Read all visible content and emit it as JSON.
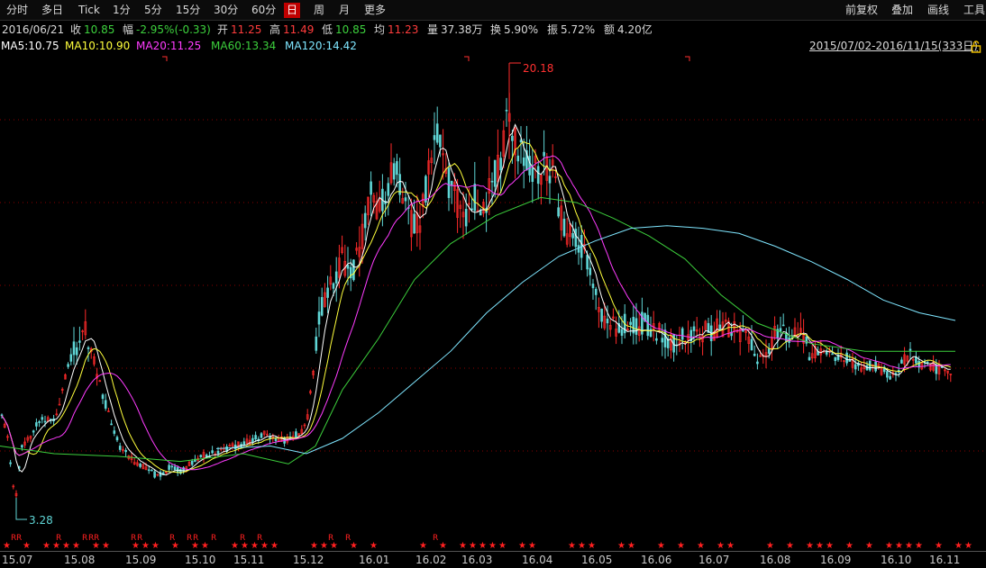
{
  "toolbar": {
    "left": [
      "分时",
      "多日",
      "Tick",
      "1分",
      "5分",
      "15分",
      "30分",
      "60分",
      "日",
      "周",
      "月",
      "更多"
    ],
    "active": "日",
    "right": [
      "前复权",
      "叠加",
      "画线",
      "工具"
    ]
  },
  "info": {
    "date": "2016/06/21",
    "close_label": "收",
    "close": "10.85",
    "change_label": "幅",
    "change": "-2.95%(-0.33)",
    "open_label": "开",
    "open": "11.25",
    "high_label": "高",
    "high": "11.49",
    "low_label": "低",
    "low": "10.85",
    "avg_label": "均",
    "avg": "11.23",
    "volume_label": "量",
    "volume": "37.38万",
    "turnover_label": "换",
    "turnover": "5.90%",
    "amplitude_label": "振",
    "amplitude": "5.72%",
    "amount_label": "额",
    "amount": "4.20亿"
  },
  "ma": {
    "ma5": "MA5:10.75",
    "ma10": "MA10:10.90",
    "ma20": "MA20:11.25",
    "ma60": "MA60:13.34",
    "ma120": "MA120:14.42",
    "range": "2015/07/02-2016/11/15(333日)",
    "lock_icon": "lock-icon"
  },
  "colors": {
    "up": "#ff2a2a",
    "down": "#5fd6d6",
    "ma5": "#ffffff",
    "ma10": "#ffff3c",
    "ma20": "#ff3cff",
    "ma60": "#3ccf3c",
    "ma120": "#7fe6ff",
    "grid": "#8a0000",
    "change": "#3dd13d",
    "up_text": "#ff3c3c",
    "marker": "#ff2020"
  },
  "price_labels": {
    "high": "20.18",
    "low": "3.28"
  },
  "date_axis": [
    "15.07",
    "15.08",
    "15.09",
    "15.10",
    "15.11",
    "15.12",
    "16.01",
    "16.02",
    "16.03",
    "16.04",
    "16.05",
    "16.06",
    "16.07",
    "16.08",
    "16.09",
    "16.10",
    "16.11"
  ],
  "chart_data": {
    "type": "candlestick",
    "price_range": [
      3.28,
      20.18
    ],
    "series": [
      {
        "name": "MA5",
        "last": 10.75
      },
      {
        "name": "MA10",
        "last": 10.9
      },
      {
        "name": "MA20",
        "last": 11.25
      },
      {
        "name": "MA60",
        "last": 13.34
      },
      {
        "name": "MA120",
        "last": 14.42
      }
    ],
    "keypoints": [
      [
        0,
        6.6
      ],
      [
        8,
        5.9
      ],
      [
        14,
        3.9
      ],
      [
        18,
        3.4
      ],
      [
        24,
        5.3
      ],
      [
        35,
        5.8
      ],
      [
        45,
        6.4
      ],
      [
        60,
        6.3
      ],
      [
        72,
        7.9
      ],
      [
        82,
        9.0
      ],
      [
        95,
        9.8
      ],
      [
        105,
        8.5
      ],
      [
        112,
        7.5
      ],
      [
        120,
        6.6
      ],
      [
        132,
        5.3
      ],
      [
        145,
        4.8
      ],
      [
        160,
        4.5
      ],
      [
        175,
        4.1
      ],
      [
        190,
        4.5
      ],
      [
        200,
        4.3
      ],
      [
        215,
        4.7
      ],
      [
        230,
        5.0
      ],
      [
        245,
        5.1
      ],
      [
        260,
        5.3
      ],
      [
        280,
        5.5
      ],
      [
        295,
        5.8
      ],
      [
        310,
        5.5
      ],
      [
        325,
        5.6
      ],
      [
        340,
        6.1
      ],
      [
        348,
        8.4
      ],
      [
        356,
        10.7
      ],
      [
        365,
        11.5
      ],
      [
        380,
        12.6
      ],
      [
        392,
        12.2
      ],
      [
        403,
        13.6
      ],
      [
        412,
        15.5
      ],
      [
        420,
        14.5
      ],
      [
        428,
        15.1
      ],
      [
        435,
        15.9
      ],
      [
        442,
        16.0
      ],
      [
        450,
        14.8
      ],
      [
        458,
        13.8
      ],
      [
        466,
        14.0
      ],
      [
        474,
        15.8
      ],
      [
        482,
        16.8
      ],
      [
        490,
        17.6
      ],
      [
        498,
        15.5
      ],
      [
        507,
        14.8
      ],
      [
        515,
        14.2
      ],
      [
        522,
        15.0
      ],
      [
        530,
        15.0
      ],
      [
        538,
        14.9
      ],
      [
        546,
        15.4
      ],
      [
        554,
        16.5
      ],
      [
        562,
        17.7
      ],
      [
        570,
        17.4
      ],
      [
        578,
        16.6
      ],
      [
        586,
        16.0
      ],
      [
        594,
        16.4
      ],
      [
        602,
        16.1
      ],
      [
        612,
        16.1
      ],
      [
        620,
        14.4
      ],
      [
        628,
        13.8
      ],
      [
        636,
        13.7
      ],
      [
        646,
        13.1
      ],
      [
        656,
        11.7
      ],
      [
        666,
        10.5
      ],
      [
        678,
        10.0
      ],
      [
        690,
        10.0
      ],
      [
        702,
        10.0
      ],
      [
        714,
        10.1
      ],
      [
        726,
        9.9
      ],
      [
        738,
        9.5
      ],
      [
        750,
        9.3
      ],
      [
        762,
        9.6
      ],
      [
        774,
        9.6
      ],
      [
        786,
        9.8
      ],
      [
        800,
        9.9
      ],
      [
        815,
        9.8
      ],
      [
        830,
        9.6
      ],
      [
        840,
        8.7
      ],
      [
        850,
        9.1
      ],
      [
        860,
        9.7
      ],
      [
        872,
        9.8
      ],
      [
        884,
        9.7
      ],
      [
        896,
        9.1
      ],
      [
        910,
        8.9
      ],
      [
        925,
        8.8
      ],
      [
        940,
        8.7
      ],
      [
        955,
        8.4
      ],
      [
        970,
        8.4
      ],
      [
        985,
        8.1
      ],
      [
        995,
        8.1
      ],
      [
        1003,
        8.6
      ],
      [
        1010,
        9.0
      ],
      [
        1018,
        8.6
      ],
      [
        1026,
        8.4
      ],
      [
        1034,
        8.4
      ],
      [
        1042,
        8.3
      ],
      [
        1050,
        8.0
      ],
      [
        1060,
        8.1
      ]
    ],
    "ma60_points": [
      [
        0,
        5.3
      ],
      [
        60,
        5.0
      ],
      [
        130,
        4.9
      ],
      [
        200,
        4.7
      ],
      [
        270,
        5.0
      ],
      [
        320,
        4.6
      ],
      [
        350,
        5.3
      ],
      [
        380,
        7.5
      ],
      [
        420,
        9.5
      ],
      [
        460,
        11.8
      ],
      [
        500,
        13.2
      ],
      [
        550,
        14.3
      ],
      [
        600,
        15.0
      ],
      [
        640,
        14.8
      ],
      [
        680,
        14.2
      ],
      [
        720,
        13.5
      ],
      [
        760,
        12.6
      ],
      [
        800,
        11.2
      ],
      [
        840,
        10.1
      ],
      [
        900,
        9.3
      ],
      [
        960,
        9.0
      ],
      [
        1020,
        9.0
      ],
      [
        1060,
        9.0
      ]
    ],
    "ma120_points": [
      [
        240,
        5.2
      ],
      [
        300,
        5.3
      ],
      [
        340,
        5.0
      ],
      [
        380,
        5.6
      ],
      [
        420,
        6.6
      ],
      [
        460,
        7.8
      ],
      [
        500,
        9.0
      ],
      [
        540,
        10.5
      ],
      [
        580,
        11.7
      ],
      [
        620,
        12.7
      ],
      [
        660,
        13.3
      ],
      [
        700,
        13.8
      ],
      [
        740,
        13.9
      ],
      [
        780,
        13.8
      ],
      [
        820,
        13.6
      ],
      [
        860,
        13.1
      ],
      [
        900,
        12.5
      ],
      [
        940,
        11.8
      ],
      [
        980,
        11.0
      ],
      [
        1020,
        10.5
      ],
      [
        1060,
        10.2
      ]
    ],
    "markers_red": "RR R RRR RR R RR RR R R R R R R",
    "note": "daily candles with moving averages, right-top price high 20.18 in 2016.04, low 3.28 in 2015.07"
  }
}
